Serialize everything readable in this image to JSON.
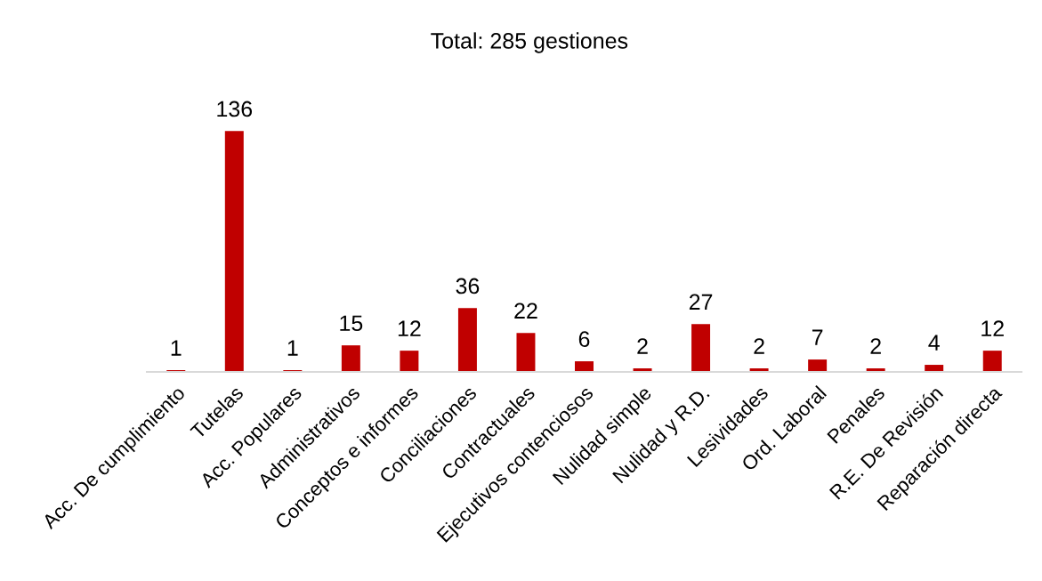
{
  "chart_data": {
    "type": "bar",
    "title": "Total: 285 gestiones",
    "categories": [
      "Acc. De cumplimiento",
      "Tutelas",
      "Acc. Populares",
      "Administrativos",
      "Conceptos e informes",
      "Conciliaciones",
      "Contractuales",
      "Ejecutivos contenciosos",
      "Nulidad simple",
      "Nulidad y R.D.",
      "Lesividades",
      "Ord. Laboral",
      "Penales",
      "R.E. De Revisión",
      "Reparación directa"
    ],
    "values": [
      1,
      136,
      1,
      15,
      12,
      36,
      22,
      6,
      2,
      27,
      2,
      7,
      2,
      4,
      12
    ],
    "color": "#c00000",
    "data_labels": true,
    "tick_labels": "x",
    "grid": false,
    "legend": false
  }
}
